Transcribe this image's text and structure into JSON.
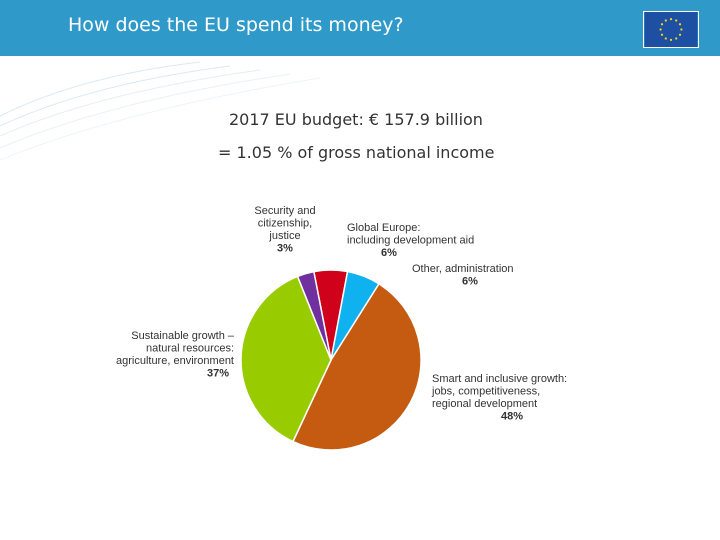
{
  "slide": {
    "title": "How does the EU spend its money?"
  },
  "budget": {
    "line1": "2017 EU budget:  € 157.9 billion",
    "line2": "= 1.05 % of gross national income"
  },
  "colors": {
    "header": "#2f9ac9",
    "flag_blue": "#1d4fa3",
    "flag_star": "#f7d21b"
  },
  "chart_data": {
    "type": "pie",
    "start_angle_deg": -11,
    "direction": "clockwise",
    "slices": [
      {
        "label_lines": [
          "Global Europe:",
          "including development aid"
        ],
        "value": 6,
        "percent_label": "6%",
        "color": "#d0021b"
      },
      {
        "label_lines": [
          "Other, administration"
        ],
        "value": 6,
        "percent_label": "6%",
        "color": "#0fb2ef"
      },
      {
        "label_lines": [
          "Smart and inclusive growth:",
          "jobs, competitiveness,",
          "regional development"
        ],
        "value": 48,
        "percent_label": "48%",
        "color": "#c55a11"
      },
      {
        "label_lines": [
          "Sustainable growth –",
          "natural resources:",
          "agriculture, environment"
        ],
        "value": 37,
        "percent_label": "37%",
        "color": "#99cc00"
      },
      {
        "label_lines": [
          "Security and",
          "citizenship,",
          "justice"
        ],
        "value": 3,
        "percent_label": "3%",
        "color": "#7030a0"
      }
    ]
  }
}
